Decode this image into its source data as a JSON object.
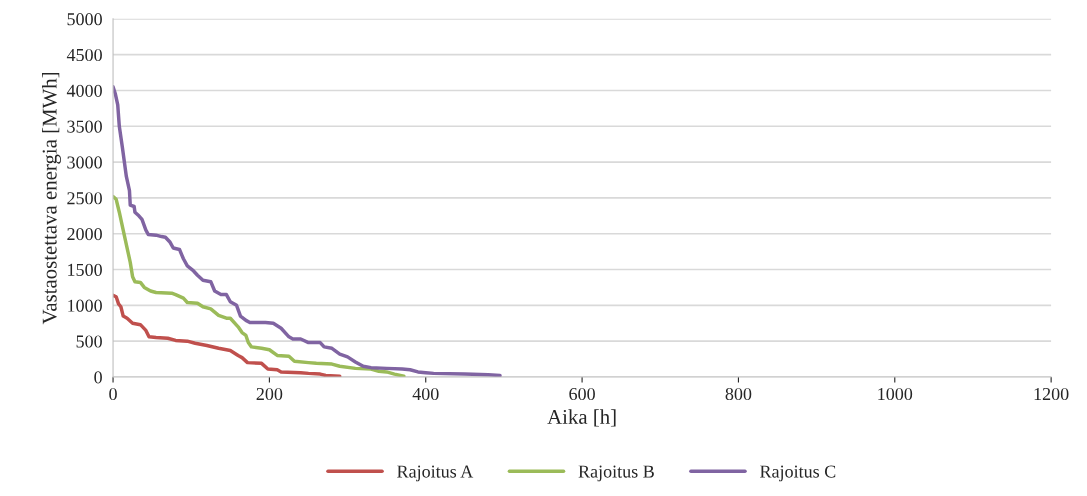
{
  "chart_data": {
    "type": "line",
    "xlabel": "Aika [h]",
    "ylabel": "Vastaostettava energia [MWh]",
    "xlim": [
      0,
      1200
    ],
    "xticks": [
      0,
      200,
      400,
      600,
      800,
      1000,
      1200
    ],
    "ylim": [
      0,
      5000
    ],
    "yticks": [
      0,
      500,
      1000,
      1500,
      2000,
      2500,
      3000,
      3500,
      4000,
      4500,
      5000
    ],
    "grid": "y",
    "legend": "bottom",
    "marker": "none",
    "line_style": "solid",
    "series": [
      {
        "name": "Rajoitus A",
        "color": "#c0504d",
        "x": [
          0,
          4,
          7,
          10,
          13,
          18,
          25,
          35,
          42,
          46,
          55,
          70,
          80,
          95,
          105,
          120,
          135,
          150,
          160,
          165,
          172,
          190,
          198,
          210,
          215,
          240,
          250,
          265,
          272,
          290
        ],
        "values": [
          1140,
          1120,
          1020,
          980,
          850,
          820,
          750,
          730,
          650,
          560,
          550,
          540,
          510,
          500,
          470,
          440,
          400,
          370,
          300,
          270,
          200,
          190,
          110,
          100,
          70,
          60,
          50,
          40,
          20,
          10
        ]
      },
      {
        "name": "Rajoitus B",
        "color": "#9bbb59",
        "x": [
          0,
          4,
          8,
          12,
          18,
          22,
          25,
          28,
          35,
          40,
          48,
          55,
          75,
          80,
          90,
          95,
          108,
          115,
          125,
          135,
          145,
          150,
          160,
          165,
          170,
          173,
          177,
          190,
          200,
          210,
          225,
          232,
          250,
          260,
          280,
          290,
          310,
          330,
          340,
          350,
          360,
          372
        ],
        "values": [
          2520,
          2480,
          2300,
          2100,
          1800,
          1600,
          1400,
          1330,
          1320,
          1250,
          1200,
          1180,
          1170,
          1150,
          1100,
          1040,
          1030,
          980,
          950,
          860,
          820,
          820,
          700,
          620,
          580,
          480,
          420,
          400,
          380,
          300,
          290,
          220,
          200,
          190,
          180,
          150,
          120,
          110,
          80,
          70,
          40,
          10
        ]
      },
      {
        "name": "Rajoitus C",
        "color": "#8064a2",
        "x": [
          0,
          3,
          6,
          8,
          12,
          17,
          21,
          22,
          27,
          28,
          33,
          37,
          42,
          45,
          55,
          62,
          67,
          73,
          77,
          85,
          90,
          95,
          103,
          108,
          115,
          125,
          130,
          138,
          145,
          150,
          158,
          163,
          170,
          175,
          195,
          205,
          215,
          225,
          230,
          240,
          250,
          265,
          270,
          280,
          290,
          300,
          310,
          320,
          330,
          350,
          370,
          380,
          390,
          400,
          410,
          450,
          480,
          495
        ],
        "values": [
          4050,
          3950,
          3800,
          3500,
          3200,
          2800,
          2600,
          2400,
          2380,
          2300,
          2250,
          2200,
          2050,
          1990,
          1980,
          1960,
          1950,
          1880,
          1800,
          1780,
          1650,
          1550,
          1480,
          1420,
          1350,
          1330,
          1200,
          1150,
          1150,
          1050,
          1000,
          850,
          790,
          760,
          760,
          750,
          680,
          560,
          530,
          530,
          480,
          480,
          420,
          400,
          320,
          280,
          210,
          150,
          130,
          120,
          110,
          100,
          70,
          60,
          50,
          40,
          30,
          20
        ]
      }
    ]
  }
}
